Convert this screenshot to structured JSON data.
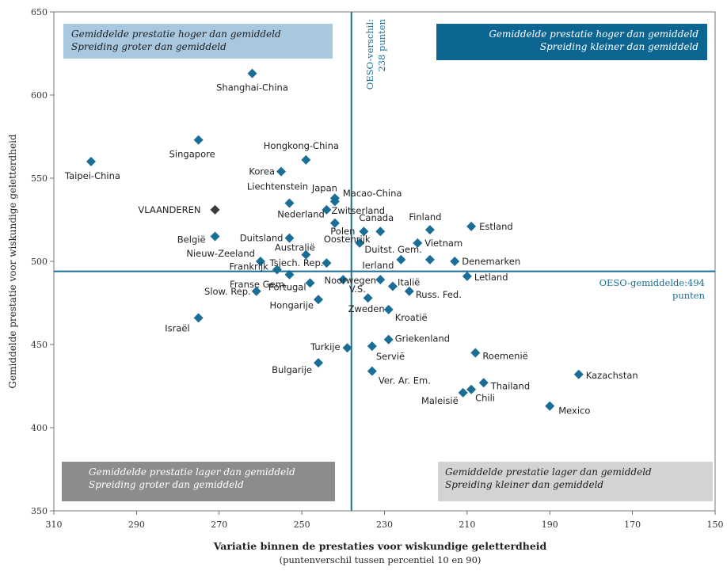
{
  "chart_data": {
    "type": "scatter",
    "xlabel": "Variatie binnen de prestaties voor wiskundige geletterdheid",
    "xlabel_sub": "(puntenverschil tussen percentiel 10 en 90)",
    "ylabel": "Gemiddelde prestatie voor wiskundige geletterdheid",
    "xlim": [
      310,
      150
    ],
    "ylim": [
      350,
      650
    ],
    "x_ticks": [
      310,
      290,
      270,
      250,
      230,
      210,
      190,
      170,
      150
    ],
    "y_ticks": [
      350,
      400,
      450,
      500,
      550,
      600,
      650
    ],
    "colors": {
      "point": "#1a6e95",
      "highlight": "#3a3a3a",
      "refline": "#1a6e95"
    },
    "ref_lines": {
      "vertical": {
        "x": 238,
        "label_lines": [
          "OESO-verschil:",
          "238 punten"
        ]
      },
      "horizontal": {
        "y": 494,
        "label_lines": [
          "OESO-gemiddelde:494",
          "punten"
        ]
      }
    },
    "quadrants": [
      {
        "position": "top-left",
        "lines": [
          "Gemiddelde prestatie hoger dan gemiddeld",
          "Spreiding groter dan gemiddeld"
        ],
        "fill": "#a8c8e0",
        "text_color": "#1f1f1f"
      },
      {
        "position": "top-right",
        "lines": [
          "Gemiddelde prestatie hoger dan gemiddeld",
          "Spreiding kleiner dan gemiddeld"
        ],
        "fill": "#0d6591",
        "text_color": "#ffffff"
      },
      {
        "position": "bottom-left",
        "lines": [
          "Gemiddelde prestatie lager dan gemiddeld",
          "Spreiding groter dan gemiddeld"
        ],
        "fill": "#8c8c8e",
        "text_color": "#ffffff"
      },
      {
        "position": "bottom-right",
        "lines": [
          "Gemiddelde prestatie lager dan gemiddeld",
          "Spreiding kleiner dan gemiddeld"
        ],
        "fill": "#d3d3d3",
        "text_color": "#1f1f1f"
      }
    ],
    "points": [
      {
        "label": "Shanghai-China",
        "x": 262,
        "y": 613
      },
      {
        "label": "Singapore",
        "x": 275,
        "y": 573
      },
      {
        "label": "Taipei-China",
        "x": 301,
        "y": 560
      },
      {
        "label": "Hongkong-China",
        "x": 249,
        "y": 561
      },
      {
        "label": "Korea",
        "x": 255,
        "y": 554
      },
      {
        "label": "Liechtenstein",
        "x": 253,
        "y": 535
      },
      {
        "label": "Japan",
        "x": 242,
        "y": 536
      },
      {
        "label": "Macao-China",
        "x": 242,
        "y": 538
      },
      {
        "label": "VLAANDEREN",
        "x": 271,
        "y": 531,
        "highlight": true
      },
      {
        "label": "Zwitserland",
        "x": 244,
        "y": 531
      },
      {
        "label": "Nederland",
        "x": 242,
        "y": 523
      },
      {
        "label": "Estland",
        "x": 209,
        "y": 521
      },
      {
        "label": "Finland",
        "x": 219,
        "y": 519
      },
      {
        "label": "Canada",
        "x": 231,
        "y": 518
      },
      {
        "label": "Polen",
        "x": 235,
        "y": 518
      },
      {
        "label": "België",
        "x": 271,
        "y": 515
      },
      {
        "label": "Duitsland",
        "x": 253,
        "y": 514
      },
      {
        "label": "Oostenrijk",
        "x": 236,
        "y": 511
      },
      {
        "label": "Vietnam",
        "x": 222,
        "y": 511
      },
      {
        "label": "Nieuw-Zeeland",
        "x": 260,
        "y": 500
      },
      {
        "label": "Australië",
        "x": 249,
        "y": 504
      },
      {
        "label": "Tsjech. Rep.",
        "x": 244,
        "y": 499
      },
      {
        "label": "Duitst. Gem.",
        "x": 219,
        "y": 501
      },
      {
        "label": "Denemarken",
        "x": 213,
        "y": 500
      },
      {
        "label": "Ierland",
        "x": 226,
        "y": 501
      },
      {
        "label": "Frankrijk",
        "x": 256,
        "y": 495
      },
      {
        "label": "Noorwegen",
        "x": 240,
        "y": 489
      },
      {
        "label": "Franse Gem.",
        "x": 253,
        "y": 492
      },
      {
        "label": "Letland",
        "x": 210,
        "y": 491
      },
      {
        "label": "V.S.",
        "x": 231,
        "y": 489
      },
      {
        "label": "Italië",
        "x": 228,
        "y": 485
      },
      {
        "label": "Portugal",
        "x": 248,
        "y": 487
      },
      {
        "label": "Slow. Rep.",
        "x": 261,
        "y": 482
      },
      {
        "label": "Russ. Fed.",
        "x": 224,
        "y": 482
      },
      {
        "label": "Hongarije",
        "x": 246,
        "y": 477
      },
      {
        "label": "Zweden",
        "x": 234,
        "y": 478
      },
      {
        "label": "Kroatië",
        "x": 229,
        "y": 471
      },
      {
        "label": "Israël",
        "x": 275,
        "y": 466
      },
      {
        "label": "Griekenland",
        "x": 229,
        "y": 453
      },
      {
        "label": "Turkije",
        "x": 239,
        "y": 448
      },
      {
        "label": "Servië",
        "x": 233,
        "y": 449
      },
      {
        "label": "Roemenië",
        "x": 208,
        "y": 445
      },
      {
        "label": "Bulgarije",
        "x": 246,
        "y": 439
      },
      {
        "label": "Ver. Ar. Em.",
        "x": 233,
        "y": 434
      },
      {
        "label": "Kazachstan",
        "x": 183,
        "y": 432
      },
      {
        "label": "Thailand",
        "x": 206,
        "y": 427
      },
      {
        "label": "Chili",
        "x": 209,
        "y": 423
      },
      {
        "label": "Maleisië",
        "x": 211,
        "y": 421
      },
      {
        "label": "Mexico",
        "x": 190,
        "y": 413
      }
    ]
  }
}
